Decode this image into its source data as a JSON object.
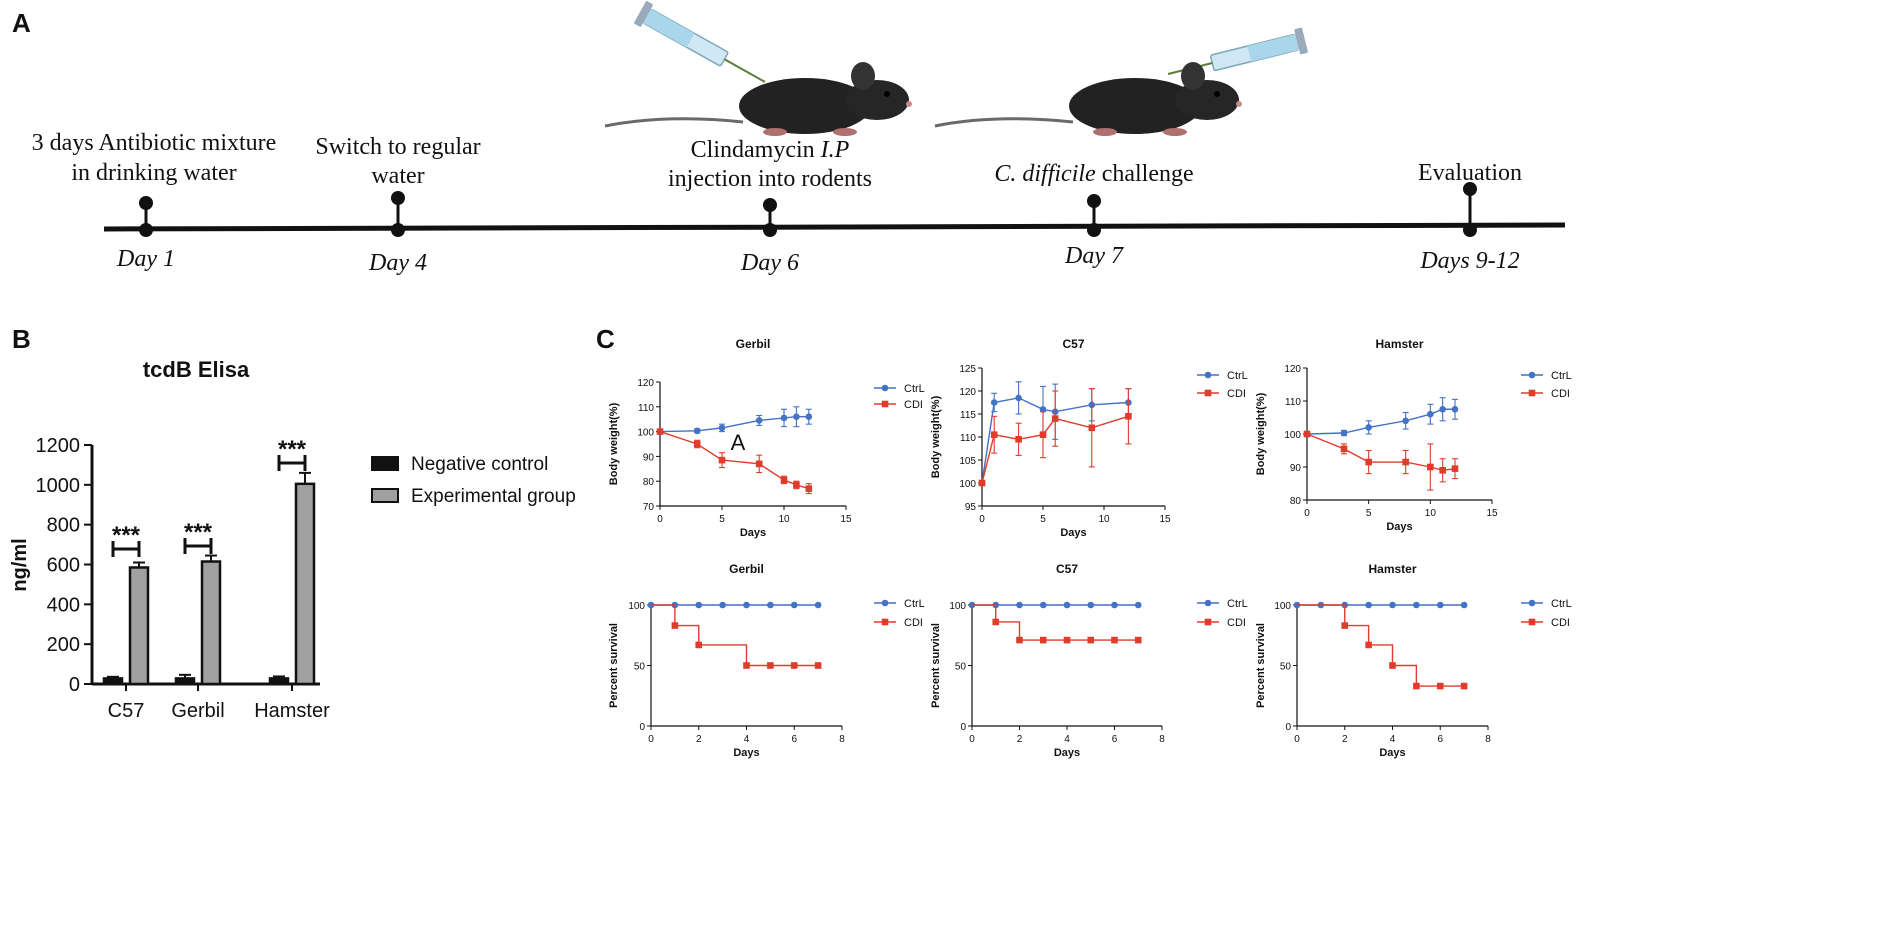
{
  "panel_a": {
    "label": "A",
    "events": [
      {
        "title_lines": [
          "3 days Antibiotic mixture",
          "in drinking water"
        ],
        "day": "Day 1"
      },
      {
        "title_lines": [
          "Switch to regular",
          "water"
        ],
        "day": "Day 4"
      },
      {
        "title_lines": [
          "Clindamycin I.P",
          "injection into rodents"
        ],
        "day": "Day 6"
      },
      {
        "title_lines": [
          "C. difficile challenge"
        ],
        "day": "Day 7"
      },
      {
        "title_lines": [
          "Evaluation"
        ],
        "day": "Days 9-12"
      }
    ],
    "illustrations": [
      "mouse-with-syringe",
      "mouse-with-syringe"
    ]
  },
  "panel_b": {
    "label": "B",
    "significance": "***",
    "chart_data": {
      "type": "bar",
      "title": "tcdB Elisa",
      "ylabel": "ng/ml",
      "xlabel": "",
      "ylim": [
        0,
        1200
      ],
      "yticks": [
        0,
        200,
        400,
        600,
        800,
        1000,
        1200
      ],
      "categories": [
        "C57",
        "Gerbil",
        "Hamster"
      ],
      "series": [
        {
          "name": "Negative control",
          "color": "#111111",
          "values": [
            28,
            28,
            28
          ],
          "errors": [
            8,
            18,
            10
          ]
        },
        {
          "name": "Experimental group",
          "color": "#a0a0a0",
          "values": [
            585,
            615,
            1005
          ],
          "errors": [
            25,
            30,
            55
          ]
        }
      ]
    }
  },
  "panel_c": {
    "label": "C",
    "stray_letter": "A",
    "chart_data": [
      {
        "type": "line",
        "title": "Gerbil",
        "xlabel": "Days",
        "ylabel": "Body weight(%)",
        "xlim": [
          0,
          15
        ],
        "ylim": [
          70,
          120
        ],
        "xticks": [
          0,
          5,
          10,
          15
        ],
        "yticks": [
          70,
          80,
          90,
          100,
          110,
          120
        ],
        "series": [
          {
            "name": "CtrL",
            "color": "#4472c4",
            "marker": "circle",
            "x": [
              0,
              3,
              5,
              8,
              10,
              11,
              12
            ],
            "y": [
              100,
              100.3,
              101.5,
              104.5,
              105.5,
              106,
              106
            ],
            "err": [
              0,
              0.8,
              1.5,
              2,
              3.5,
              4,
              3
            ]
          },
          {
            "name": "CDI",
            "color": "#e03c2c",
            "marker": "square",
            "x": [
              0,
              3,
              5,
              8,
              10,
              11,
              12
            ],
            "y": [
              100,
              95,
              88.5,
              87,
              80.5,
              78.5,
              77
            ],
            "err": [
              0,
              1.5,
              3,
              3.5,
              1.5,
              1.5,
              2
            ]
          }
        ]
      },
      {
        "type": "line",
        "title": "C57",
        "xlabel": "Days",
        "ylabel": "Body weight(%)",
        "xlim": [
          0,
          15
        ],
        "ylim": [
          95,
          125
        ],
        "xticks": [
          0,
          5,
          10,
          15
        ],
        "yticks": [
          95,
          100,
          105,
          110,
          115,
          120,
          125
        ],
        "series": [
          {
            "name": "CtrL",
            "color": "#4472c4",
            "marker": "circle",
            "x": [
              0,
              1,
              3,
              5,
              6,
              9,
              12
            ],
            "y": [
              100,
              117.5,
              118.5,
              116,
              115.5,
              117,
              117.5
            ],
            "err": [
              0,
              2,
              3.5,
              5,
              6,
              3.5,
              3
            ]
          },
          {
            "name": "CDI",
            "color": "#e03c2c",
            "marker": "square",
            "x": [
              0,
              1,
              3,
              5,
              6,
              9,
              12
            ],
            "y": [
              100,
              110.5,
              109.5,
              110.5,
              114,
              112,
              114.5
            ],
            "err": [
              0,
              4,
              3.5,
              5,
              6,
              8.5,
              6
            ]
          }
        ]
      },
      {
        "type": "line",
        "title": "Hamster",
        "xlabel": "Days",
        "ylabel": "Body weight(%)",
        "xlim": [
          0,
          15
        ],
        "ylim": [
          80,
          120
        ],
        "xticks": [
          0,
          5,
          10,
          15
        ],
        "yticks": [
          80,
          90,
          100,
          110,
          120
        ],
        "series": [
          {
            "name": "CtrL",
            "color": "#4472c4",
            "marker": "circle",
            "x": [
              0,
              3,
              5,
              8,
              10,
              11,
              12
            ],
            "y": [
              100,
              100.3,
              102,
              104,
              106,
              107.5,
              107.5
            ],
            "err": [
              0,
              0.8,
              2,
              2.5,
              3,
              3.5,
              3
            ]
          },
          {
            "name": "CDI",
            "color": "#e03c2c",
            "marker": "square",
            "x": [
              0,
              3,
              5,
              8,
              10,
              11,
              12
            ],
            "y": [
              100,
              95.5,
              91.5,
              91.5,
              90,
              89,
              89.5
            ],
            "err": [
              0,
              1.5,
              3.5,
              3.5,
              7,
              3.5,
              3
            ]
          }
        ]
      },
      {
        "type": "line",
        "step": true,
        "title": "Gerbil",
        "xlabel": "Days",
        "ylabel": "Percent survival",
        "xlim": [
          0,
          8
        ],
        "ylim": [
          0,
          100
        ],
        "xticks": [
          0,
          2,
          4,
          6,
          8
        ],
        "yticks": [
          0,
          50,
          100
        ],
        "series": [
          {
            "name": "CtrL",
            "color": "#4472c4",
            "marker": "circle",
            "x": [
              0,
              1,
              2,
              3,
              4,
              5,
              6,
              7
            ],
            "y": [
              100,
              100,
              100,
              100,
              100,
              100,
              100,
              100
            ]
          },
          {
            "name": "CDI",
            "color": "#e03c2c",
            "marker": "square",
            "x": [
              1,
              2,
              4,
              5,
              6,
              7
            ],
            "y": [
              83,
              67,
              50,
              50,
              50,
              50
            ]
          }
        ]
      },
      {
        "type": "line",
        "step": true,
        "title": "C57",
        "xlabel": "Days",
        "ylabel": "Percent survival",
        "xlim": [
          0,
          8
        ],
        "ylim": [
          0,
          100
        ],
        "xticks": [
          0,
          2,
          4,
          6,
          8
        ],
        "yticks": [
          0,
          50,
          100
        ],
        "series": [
          {
            "name": "CtrL",
            "color": "#4472c4",
            "marker": "circle",
            "x": [
              0,
              1,
              2,
              3,
              4,
              5,
              6,
              7
            ],
            "y": [
              100,
              100,
              100,
              100,
              100,
              100,
              100,
              100
            ]
          },
          {
            "name": "CDI",
            "color": "#e03c2c",
            "marker": "square",
            "x": [
              1,
              2,
              3,
              4,
              5,
              6,
              7
            ],
            "y": [
              86,
              71,
              71,
              71,
              71,
              71,
              71
            ]
          }
        ]
      },
      {
        "type": "line",
        "step": true,
        "title": "Hamster",
        "xlabel": "Days",
        "ylabel": "Percent survival",
        "xlim": [
          0,
          8
        ],
        "ylim": [
          0,
          100
        ],
        "xticks": [
          0,
          2,
          4,
          6,
          8
        ],
        "yticks": [
          0,
          50,
          100
        ],
        "series": [
          {
            "name": "CtrL",
            "color": "#4472c4",
            "marker": "circle",
            "x": [
              0,
              1,
              2,
              3,
              4,
              5,
              6,
              7
            ],
            "y": [
              100,
              100,
              100,
              100,
              100,
              100,
              100,
              100
            ]
          },
          {
            "name": "CDI",
            "color": "#e03c2c",
            "marker": "square",
            "x": [
              2,
              3,
              4,
              5,
              6,
              7
            ],
            "y": [
              83,
              67,
              50,
              33,
              33,
              33
            ]
          }
        ]
      }
    ]
  }
}
